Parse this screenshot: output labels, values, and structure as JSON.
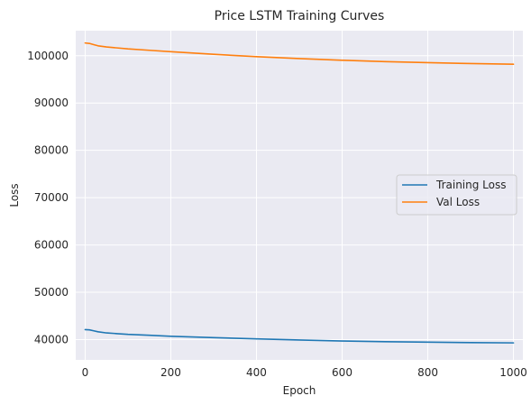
{
  "chart_data": {
    "type": "line",
    "title": "Price LSTM Training Curves",
    "xlabel": "Epoch",
    "ylabel": "Loss",
    "xlim": [
      -22,
      1022
    ],
    "ylim": [
      35700,
      105300
    ],
    "x_ticks": [
      0,
      200,
      400,
      600,
      800,
      1000
    ],
    "y_ticks": [
      40000,
      50000,
      60000,
      70000,
      80000,
      90000,
      100000
    ],
    "grid": true,
    "legend_position": "center-right",
    "series": [
      {
        "name": "Training Loss",
        "color": "#1f77b4",
        "x": [
          0,
          10,
          20,
          30,
          50,
          75,
          100,
          150,
          200,
          300,
          400,
          500,
          600,
          700,
          800,
          900,
          1000
        ],
        "y": [
          42100,
          42050,
          41850,
          41650,
          41400,
          41250,
          41100,
          40900,
          40700,
          40400,
          40150,
          39900,
          39700,
          39550,
          39450,
          39350,
          39300
        ]
      },
      {
        "name": "Val Loss",
        "color": "#ff7f0e",
        "x": [
          0,
          10,
          20,
          30,
          50,
          75,
          100,
          150,
          200,
          300,
          400,
          500,
          600,
          700,
          800,
          900,
          1000
        ],
        "y": [
          102700,
          102600,
          102350,
          102100,
          101850,
          101650,
          101450,
          101150,
          100850,
          100300,
          99800,
          99400,
          99050,
          98750,
          98550,
          98350,
          98200
        ]
      }
    ]
  }
}
